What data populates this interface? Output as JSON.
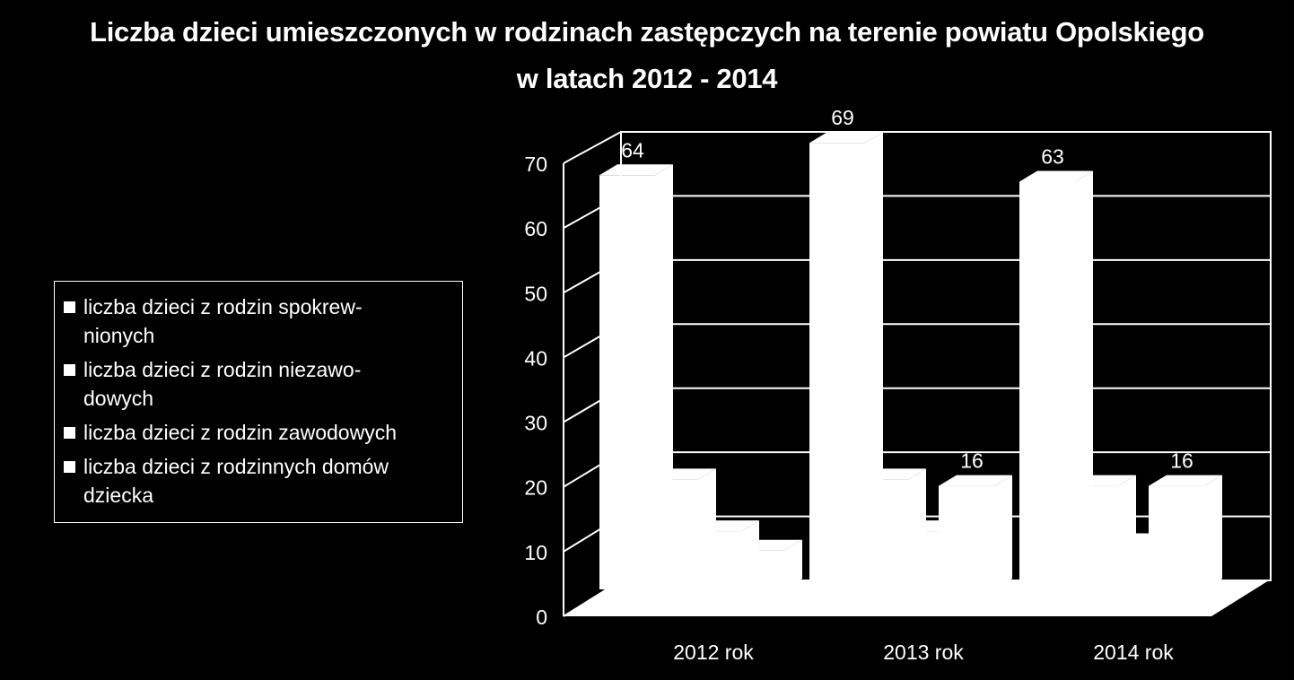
{
  "chart_data": {
    "type": "bar",
    "title": "Liczba dzieci umieszczonych w rodzinach zastępczych na terenie powiatu Opolskiego w latach 2012 - 2014",
    "title_lines": [
      "Liczba dzieci umieszczonych w rodzinach zastępczych na terenie powiatu Opolskiego",
      "w latach 2012 - 2014"
    ],
    "categories": [
      "2012 rok",
      "2013 rok",
      "2014 rok"
    ],
    "series": [
      {
        "name": "liczba dzieci z rodzin spokrew-nionych",
        "legend_lines": [
          "liczba dzieci z rodzin spokrew-",
          "nionych"
        ],
        "values": [
          64,
          69,
          63
        ],
        "labels": [
          "64",
          "69",
          "63"
        ]
      },
      {
        "name": "liczba dzieci z rodzin niezawo-dowych",
        "legend_lines": [
          "liczba dzieci z rodzin niezawo-",
          "dowych"
        ],
        "values": [
          17,
          17,
          16
        ],
        "labels": [
          "",
          "",
          ""
        ]
      },
      {
        "name": "liczba dzieci z rodzin zawodowych",
        "legend_lines": [
          "liczba dzieci z rodzin zawodowych"
        ],
        "values": [
          9,
          9,
          7
        ],
        "labels": [
          "",
          "",
          ""
        ]
      },
      {
        "name": "liczba dzieci z rodzinnych domów dziecka",
        "legend_lines": [
          "liczba dzieci z rodzinnych domów",
          "dziecka"
        ],
        "values": [
          6,
          16,
          16
        ],
        "labels": [
          "",
          "16",
          "16"
        ]
      }
    ],
    "yticks": [
      "0",
      "10",
      "20",
      "30",
      "40",
      "50",
      "60",
      "70"
    ],
    "ylim": [
      0,
      70
    ],
    "grid": true,
    "legend_position": "left",
    "xlabel": "",
    "ylabel": ""
  },
  "colors": {
    "background": "#000000",
    "foreground": "#ffffff"
  }
}
